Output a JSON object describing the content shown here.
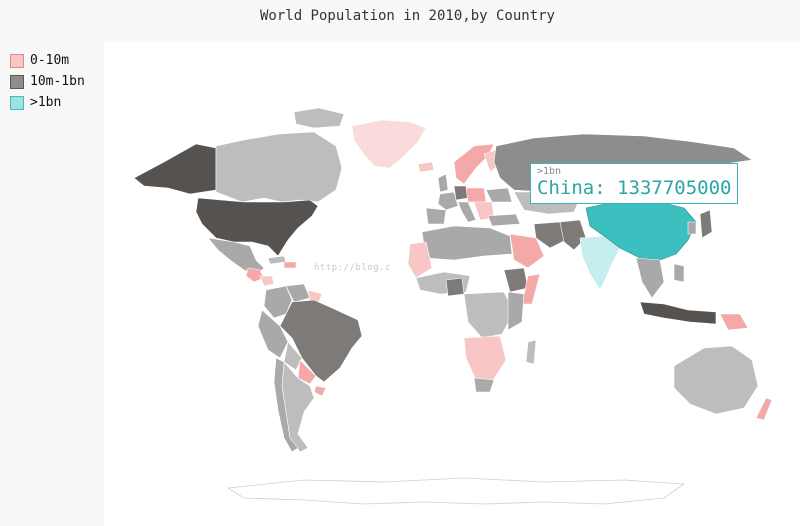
{
  "chart_data": {
    "type": "choropleth-map",
    "title": "World Population in 2010,by Country",
    "legend": {
      "placement": "top-left",
      "entries": [
        {
          "label": "0-10m",
          "fill": "#f9c6c6",
          "stroke": "#e38a8a"
        },
        {
          "label": "10m-1bn",
          "fill": "#8f8d8b",
          "stroke": "#5a5857"
        },
        {
          "label": ">1bn",
          "fill": "#9ee3e3",
          "stroke": "#44bcbc"
        }
      ]
    },
    "tooltip": {
      "category": ">1bn",
      "text": "China: 1337705000"
    },
    "highlighted": {
      "country": "China",
      "population": 1337705000,
      "color": "#3bbfbf"
    }
  },
  "watermark": "http://blog.c"
}
